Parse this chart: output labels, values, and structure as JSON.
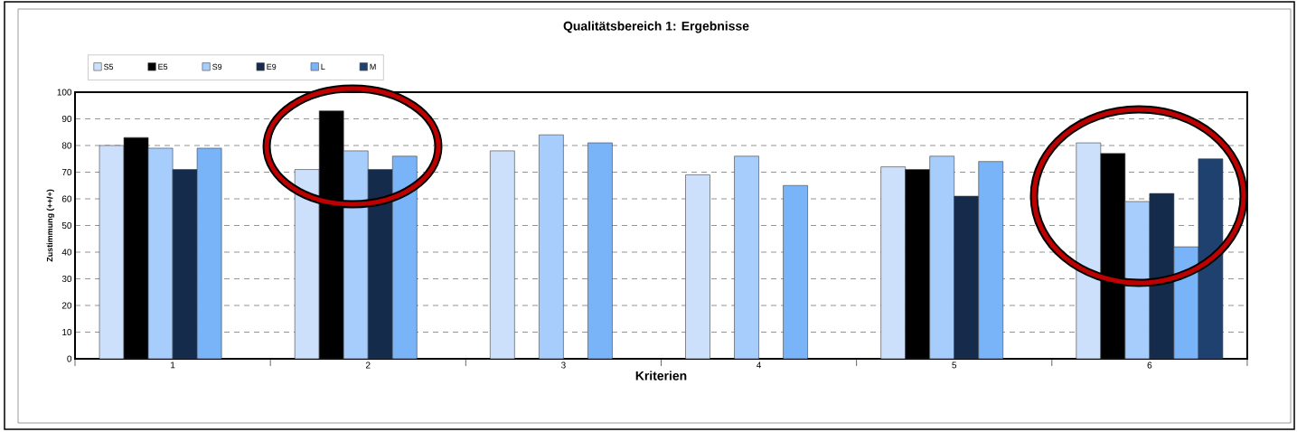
{
  "chart_data": {
    "type": "bar",
    "title": "Qualitätsbereich 1: Ergebnisse",
    "xlabel": "Kriterien",
    "ylabel": "Zustimmung (++/+)",
    "categories": [
      "1",
      "2",
      "3",
      "4",
      "5",
      "6"
    ],
    "series": [
      {
        "name": "S5",
        "color": "#cce0fc",
        "values": [
          80,
          71,
          78,
          69,
          72,
          81
        ]
      },
      {
        "name": "E5",
        "color": "#000000",
        "values": [
          83,
          93,
          null,
          null,
          71,
          77
        ]
      },
      {
        "name": "S9",
        "color": "#a6cdfc",
        "values": [
          79,
          78,
          84,
          76,
          76,
          59
        ]
      },
      {
        "name": "E9",
        "color": "#142b4c",
        "values": [
          71,
          71,
          null,
          null,
          61,
          62
        ]
      },
      {
        "name": "L",
        "color": "#7ab4f8",
        "values": [
          79,
          76,
          81,
          65,
          74,
          42
        ]
      },
      {
        "name": "M",
        "color": "#1f4170",
        "values": [
          null,
          null,
          null,
          null,
          null,
          75
        ]
      }
    ],
    "ylim": [
      0,
      100
    ],
    "yticks": [
      0,
      10,
      20,
      30,
      40,
      50,
      60,
      70,
      80,
      90,
      100
    ],
    "grid": "y",
    "legend": "top left"
  }
}
